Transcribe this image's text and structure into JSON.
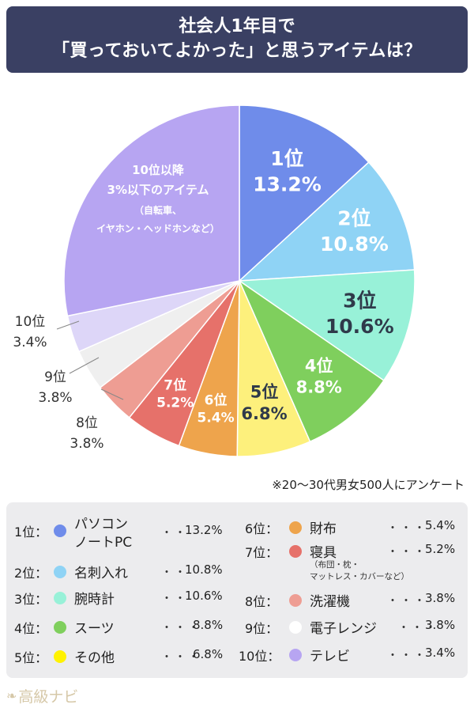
{
  "header": {
    "title_line1": "社会人1年目で",
    "title_line2": "「買っておいてよかった」と思うアイテムは？"
  },
  "chart_data": {
    "type": "pie",
    "title": "社会人1年目で「買っておいてよかった」と思うアイテムは？",
    "slices": [
      {
        "rank": "1位",
        "name": "パソコン ノートPC",
        "value": 13.2,
        "label": "13.2%",
        "color": "#6f8cea"
      },
      {
        "rank": "2位",
        "name": "名刺入れ",
        "value": 10.8,
        "label": "10.8%",
        "color": "#8fd3f5"
      },
      {
        "rank": "3位",
        "name": "腕時計",
        "value": 10.6,
        "label": "10.6%",
        "color": "#98f1d8"
      },
      {
        "rank": "4位",
        "name": "スーツ",
        "value": 8.8,
        "label": "8.8%",
        "color": "#7fcf5d"
      },
      {
        "rank": "5位",
        "name": "その他",
        "value": 6.8,
        "label": "6.8%",
        "color": "#fdf07c"
      },
      {
        "rank": "6位",
        "name": "財布",
        "value": 5.4,
        "label": "5.4%",
        "color": "#eea44c"
      },
      {
        "rank": "7位",
        "name": "寝具",
        "value": 5.2,
        "label": "5.2%",
        "color": "#e6716a"
      },
      {
        "rank": "8位",
        "name": "洗濯機",
        "value": 3.8,
        "label": "3.8%",
        "color": "#ee9d93"
      },
      {
        "rank": "9位",
        "name": "電子レンジ",
        "value": 3.8,
        "label": "3.8%",
        "color": "#efefef"
      },
      {
        "rank": "10位",
        "name": "テレビ",
        "value": 3.4,
        "label": "3.4%",
        "color": "#ddd6f8"
      },
      {
        "rank": "10位以降",
        "name": "3%以下のアイテム",
        "value": 28.2,
        "label": "",
        "color": "#b7a5f2"
      }
    ],
    "other_label": {
      "line1": "10位以降",
      "line2": "3%以下のアイテム",
      "line3": "（自転車、",
      "line4": "イヤホン・ヘッドホンなど）"
    }
  },
  "note": "※20〜30代男女500人にアンケート",
  "legend": {
    "items": [
      {
        "rank": "1位：",
        "name": "パソコン",
        "name2": "ノートPC",
        "dots": "・・",
        "pct": "13.2%",
        "color": "#6f8cea"
      },
      {
        "rank": "2位：",
        "name": "名刺入れ",
        "dots": "・・",
        "pct": "10.8%",
        "color": "#8fd3f5"
      },
      {
        "rank": "3位：",
        "name": "腕時計",
        "dots": "・・",
        "pct": "10.6%",
        "color": "#98f1d8"
      },
      {
        "rank": "4位：",
        "name": "スーツ",
        "dots": "・・・",
        "pct": "8.8%",
        "color": "#7fcf5d"
      },
      {
        "rank": "5位：",
        "name": "その他",
        "dots": "・・・",
        "pct": "6.8%",
        "color": "#fff200"
      },
      {
        "rank": "6位：",
        "name": "財布",
        "dots": "・・・",
        "pct": "5.4%",
        "color": "#eea44c"
      },
      {
        "rank": "7位：",
        "name": "寝具",
        "sub1": "（布団・枕・",
        "sub2": "マットレス・カバーなど）",
        "dots": "・・・",
        "pct": "5.2%",
        "color": "#e6716a"
      },
      {
        "rank": "8位：",
        "name": "洗濯機",
        "dots": "・・・",
        "pct": "3.8%",
        "color": "#ee9d93"
      },
      {
        "rank": "9位：",
        "name": "電子レンジ",
        "dots": "・・・",
        "pct": "3.8%",
        "color": "#ffffff"
      },
      {
        "rank": "10位：",
        "name": "テレビ",
        "dots": "・・・",
        "pct": "3.4%",
        "color": "#b7a5f2"
      }
    ]
  },
  "footer": {
    "logo_text": "高級ナビ"
  }
}
